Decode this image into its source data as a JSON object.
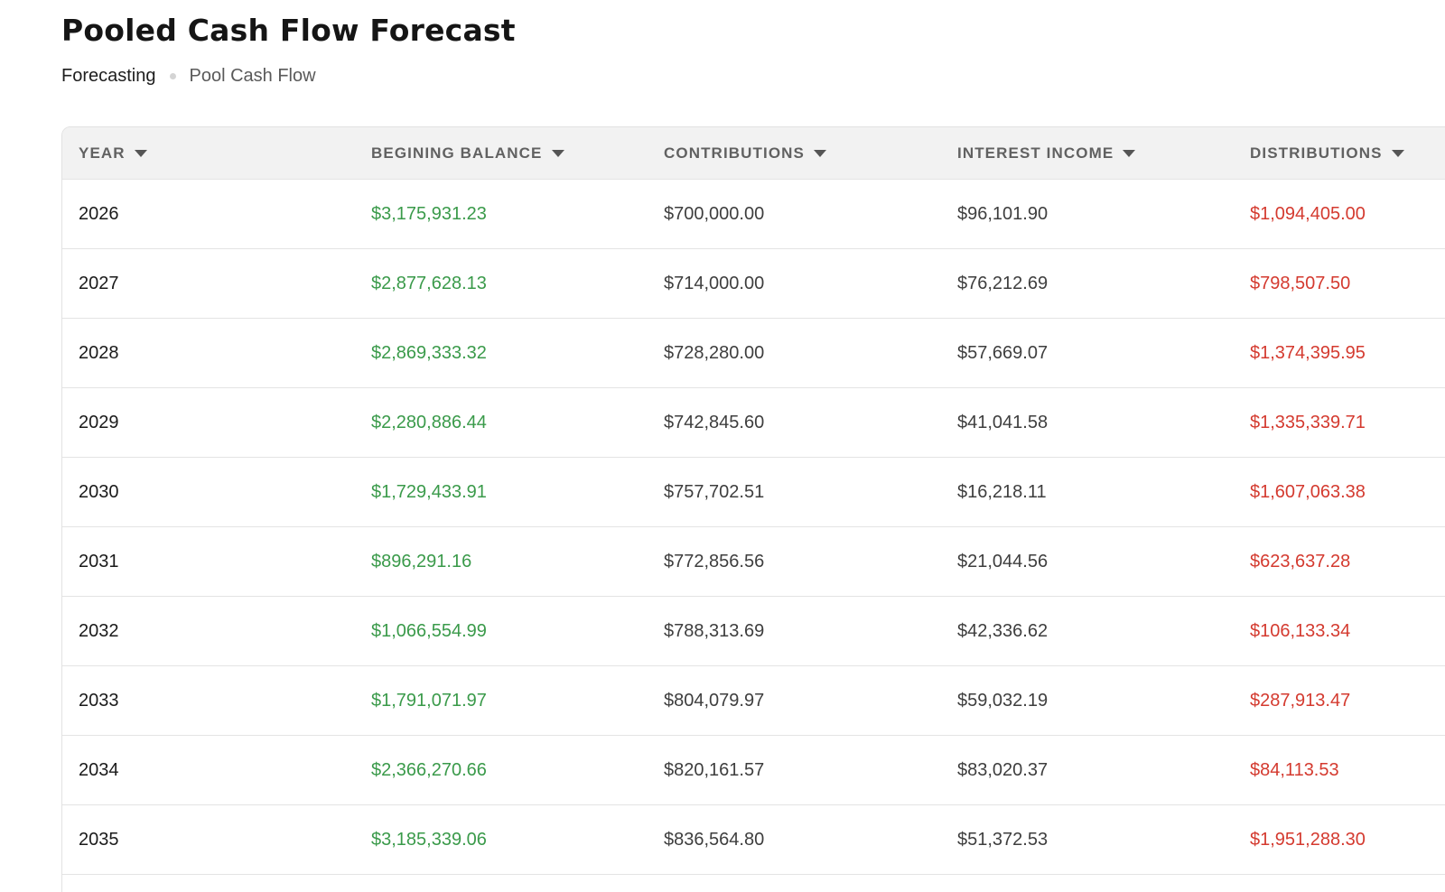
{
  "page": {
    "title": "Pooled Cash Flow Forecast",
    "breadcrumb": {
      "root": "Forecasting",
      "current": "Pool Cash Flow"
    }
  },
  "table": {
    "columns": [
      {
        "label": "YEAR"
      },
      {
        "label": "BEGINING BALANCE"
      },
      {
        "label": "CONTRIBUTIONS"
      },
      {
        "label": "INTEREST INCOME"
      },
      {
        "label": "DISTRIBUTIONS"
      }
    ],
    "rows": [
      {
        "year": "2026",
        "beginning_balance": "$3,175,931.23",
        "contributions": "$700,000.00",
        "interest_income": "$96,101.90",
        "distributions": "$1,094,405.00"
      },
      {
        "year": "2027",
        "beginning_balance": "$2,877,628.13",
        "contributions": "$714,000.00",
        "interest_income": "$76,212.69",
        "distributions": "$798,507.50"
      },
      {
        "year": "2028",
        "beginning_balance": "$2,869,333.32",
        "contributions": "$728,280.00",
        "interest_income": "$57,669.07",
        "distributions": "$1,374,395.95"
      },
      {
        "year": "2029",
        "beginning_balance": "$2,280,886.44",
        "contributions": "$742,845.60",
        "interest_income": "$41,041.58",
        "distributions": "$1,335,339.71"
      },
      {
        "year": "2030",
        "beginning_balance": "$1,729,433.91",
        "contributions": "$757,702.51",
        "interest_income": "$16,218.11",
        "distributions": "$1,607,063.38"
      },
      {
        "year": "2031",
        "beginning_balance": "$896,291.16",
        "contributions": "$772,856.56",
        "interest_income": "$21,044.56",
        "distributions": "$623,637.28"
      },
      {
        "year": "2032",
        "beginning_balance": "$1,066,554.99",
        "contributions": "$788,313.69",
        "interest_income": "$42,336.62",
        "distributions": "$106,133.34"
      },
      {
        "year": "2033",
        "beginning_balance": "$1,791,071.97",
        "contributions": "$804,079.97",
        "interest_income": "$59,032.19",
        "distributions": "$287,913.47"
      },
      {
        "year": "2034",
        "beginning_balance": "$2,366,270.66",
        "contributions": "$820,161.57",
        "interest_income": "$83,020.37",
        "distributions": "$84,113.53"
      },
      {
        "year": "2035",
        "beginning_balance": "$3,185,339.06",
        "contributions": "$836,564.80",
        "interest_income": "$51,372.53",
        "distributions": "$1,951,288.30"
      }
    ]
  },
  "colors": {
    "positive": "#3a9a4a",
    "negative": "#d43a2f",
    "header_bg": "#f2f2f2"
  },
  "icons": {
    "sort": "chevron-down-icon"
  }
}
